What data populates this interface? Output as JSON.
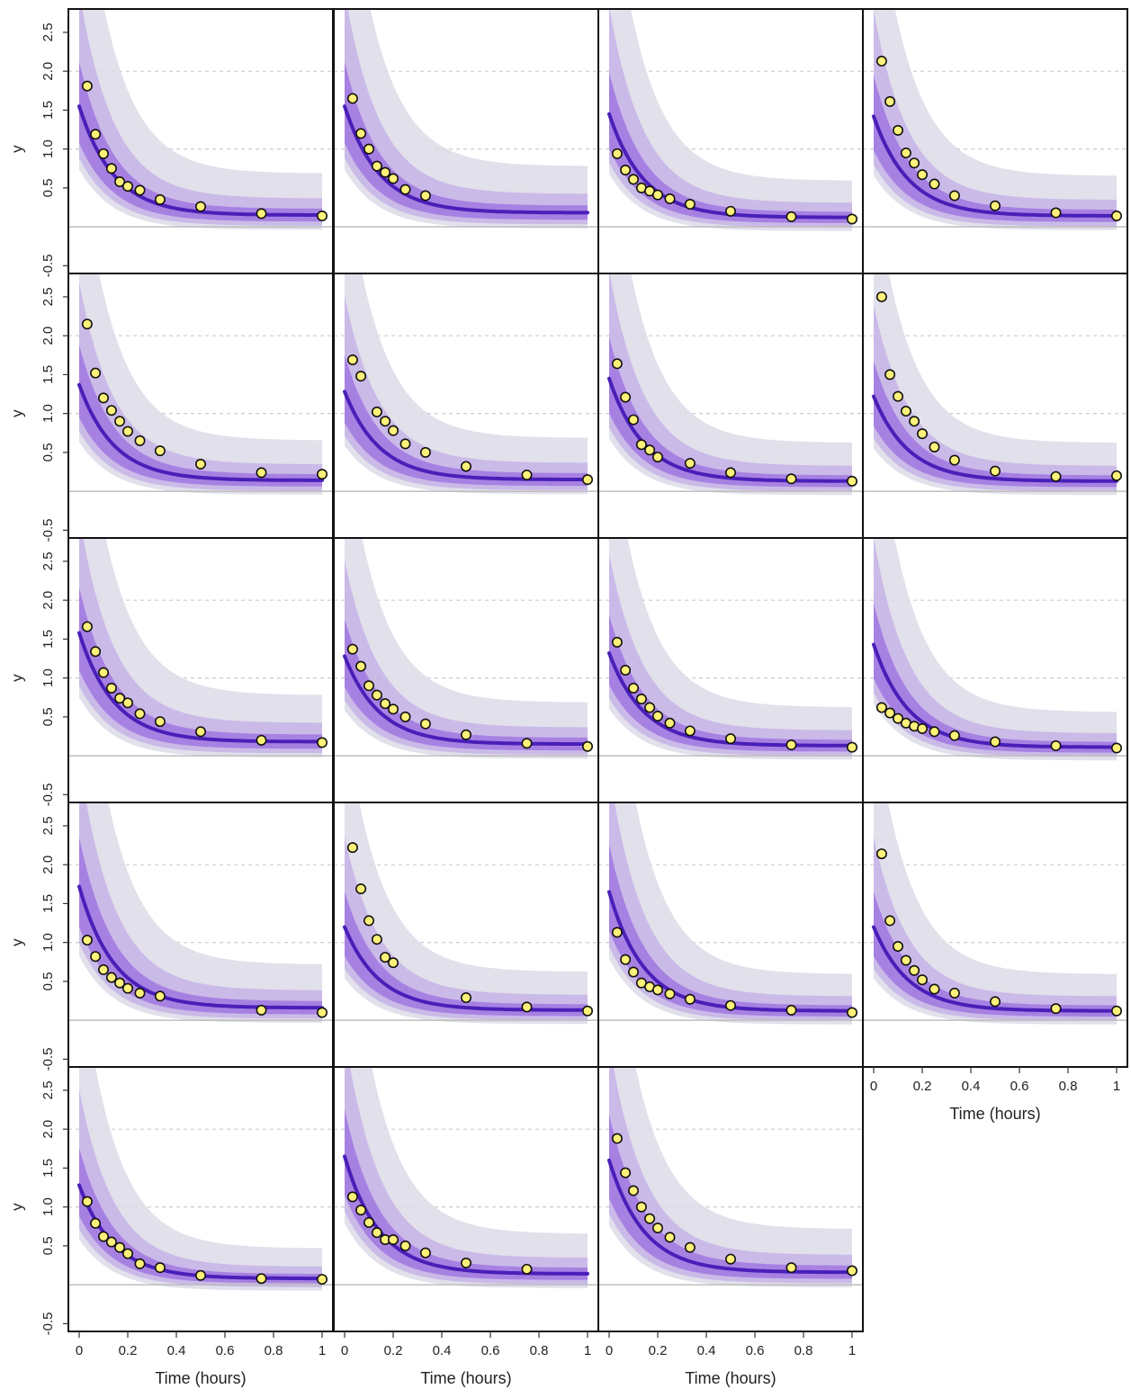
{
  "chart_data": {
    "type": "scatter",
    "layout": "small-multiples 5 rows x 4 columns (19 panels)",
    "xlabel": "Time (hours)",
    "ylabel": "y",
    "xlim": [
      0,
      1
    ],
    "ylim": [
      -0.6,
      2.8
    ],
    "x_ticks": [
      0,
      0.2,
      0.4,
      0.6,
      0.8,
      1
    ],
    "x_tick_labels": [
      "0",
      "0.2",
      "0.4",
      "0.6",
      "0.8",
      "1"
    ],
    "y_ticks": [
      -0.5,
      0.5,
      1.0,
      1.5,
      2.0,
      2.5
    ],
    "y_tick_labels": [
      "-0.5",
      "0.5",
      "1.0",
      "1.5",
      "2.0",
      "2.5"
    ],
    "dashed_gridlines_y": [
      1.0,
      2.0
    ],
    "solid_reference_y": 0,
    "sample_times": [
      0.033,
      0.067,
      0.1,
      0.133,
      0.167,
      0.2,
      0.25,
      0.333,
      0.5,
      0.75,
      1.0
    ],
    "colors": {
      "points": "#fff27a",
      "point_edge": "#111111",
      "median_line": "#4a1fb8",
      "band_outer": "#dcdae8",
      "band_mid": "#b89be6",
      "band_inner": "#8a52dd",
      "reference_line": "#bdbdbd",
      "dashed_grid": "#cccccc",
      "frame": "#111111"
    },
    "panels": [
      {
        "observed": [
          [
            0.033,
            1.81
          ],
          [
            0.067,
            1.19
          ],
          [
            0.1,
            0.94
          ],
          [
            0.133,
            0.75
          ],
          [
            0.167,
            0.58
          ],
          [
            0.2,
            0.52
          ],
          [
            0.25,
            0.47
          ],
          [
            0.333,
            0.35
          ],
          [
            0.5,
            0.26
          ],
          [
            0.75,
            0.17
          ],
          [
            1.0,
            0.14
          ]
        ],
        "median_curve": {
          "c0": 1.55,
          "floor": 0.15,
          "k": 7.0
        }
      },
      {
        "observed": [
          [
            0.033,
            1.65
          ],
          [
            0.067,
            1.2
          ],
          [
            0.1,
            1.0
          ],
          [
            0.133,
            0.78
          ],
          [
            0.167,
            0.7
          ],
          [
            0.2,
            0.62
          ],
          [
            0.25,
            0.48
          ],
          [
            0.333,
            0.4
          ]
        ],
        "median_curve": {
          "c0": 1.55,
          "floor": 0.18,
          "k": 7.0
        }
      },
      {
        "observed": [
          [
            0.033,
            0.94
          ],
          [
            0.067,
            0.73
          ],
          [
            0.1,
            0.61
          ],
          [
            0.133,
            0.5
          ],
          [
            0.167,
            0.46
          ],
          [
            0.2,
            0.41
          ],
          [
            0.25,
            0.36
          ],
          [
            0.333,
            0.29
          ],
          [
            0.5,
            0.2
          ],
          [
            0.75,
            0.13
          ],
          [
            1.0,
            0.1
          ]
        ],
        "median_curve": {
          "c0": 1.45,
          "floor": 0.12,
          "k": 7.0
        }
      },
      {
        "observed": [
          [
            0.033,
            2.13
          ],
          [
            0.067,
            1.61
          ],
          [
            0.1,
            1.24
          ],
          [
            0.133,
            0.95
          ],
          [
            0.167,
            0.82
          ],
          [
            0.2,
            0.67
          ],
          [
            0.25,
            0.55
          ],
          [
            0.333,
            0.4
          ],
          [
            0.5,
            0.27
          ],
          [
            0.75,
            0.18
          ],
          [
            1.0,
            0.14
          ]
        ],
        "median_curve": {
          "c0": 1.42,
          "floor": 0.14,
          "k": 7.0
        }
      },
      {
        "observed": [
          [
            0.033,
            2.15
          ],
          [
            0.067,
            1.52
          ],
          [
            0.1,
            1.2
          ],
          [
            0.133,
            1.04
          ],
          [
            0.167,
            0.9
          ],
          [
            0.2,
            0.77
          ],
          [
            0.25,
            0.65
          ],
          [
            0.333,
            0.52
          ],
          [
            0.5,
            0.35
          ],
          [
            0.75,
            0.24
          ],
          [
            1.0,
            0.22
          ]
        ],
        "median_curve": {
          "c0": 1.37,
          "floor": 0.14,
          "k": 7.0
        }
      },
      {
        "observed": [
          [
            0.033,
            1.69
          ],
          [
            0.067,
            1.48
          ],
          [
            0.133,
            1.02
          ],
          [
            0.167,
            0.9
          ],
          [
            0.2,
            0.78
          ],
          [
            0.25,
            0.61
          ],
          [
            0.333,
            0.5
          ],
          [
            0.5,
            0.32
          ],
          [
            0.75,
            0.21
          ],
          [
            1.0,
            0.15
          ]
        ],
        "median_curve": {
          "c0": 1.28,
          "floor": 0.15,
          "k": 7.0
        }
      },
      {
        "observed": [
          [
            0.033,
            1.64
          ],
          [
            0.067,
            1.21
          ],
          [
            0.1,
            0.92
          ],
          [
            0.133,
            0.6
          ],
          [
            0.167,
            0.53
          ],
          [
            0.2,
            0.44
          ],
          [
            0.333,
            0.36
          ],
          [
            0.5,
            0.24
          ],
          [
            0.75,
            0.16
          ],
          [
            1.0,
            0.13
          ]
        ],
        "median_curve": {
          "c0": 1.45,
          "floor": 0.13,
          "k": 7.0
        }
      },
      {
        "observed": [
          [
            0.033,
            2.5
          ],
          [
            0.067,
            1.5
          ],
          [
            0.1,
            1.22
          ],
          [
            0.133,
            1.03
          ],
          [
            0.167,
            0.9
          ],
          [
            0.2,
            0.74
          ],
          [
            0.25,
            0.57
          ],
          [
            0.333,
            0.4
          ],
          [
            0.5,
            0.26
          ],
          [
            0.75,
            0.19
          ],
          [
            1.0,
            0.2
          ]
        ],
        "median_curve": {
          "c0": 1.22,
          "floor": 0.13,
          "k": 7.0
        }
      },
      {
        "observed": [
          [
            0.033,
            1.66
          ],
          [
            0.067,
            1.34
          ],
          [
            0.1,
            1.07
          ],
          [
            0.133,
            0.87
          ],
          [
            0.167,
            0.74
          ],
          [
            0.2,
            0.68
          ],
          [
            0.25,
            0.54
          ],
          [
            0.333,
            0.44
          ],
          [
            0.5,
            0.31
          ],
          [
            0.75,
            0.2
          ],
          [
            1.0,
            0.17
          ]
        ],
        "median_curve": {
          "c0": 1.58,
          "floor": 0.18,
          "k": 7.0
        }
      },
      {
        "observed": [
          [
            0.033,
            1.37
          ],
          [
            0.067,
            1.15
          ],
          [
            0.1,
            0.9
          ],
          [
            0.133,
            0.78
          ],
          [
            0.167,
            0.67
          ],
          [
            0.2,
            0.6
          ],
          [
            0.25,
            0.5
          ],
          [
            0.333,
            0.41
          ],
          [
            0.5,
            0.27
          ],
          [
            0.75,
            0.16
          ],
          [
            1.0,
            0.12
          ]
        ],
        "median_curve": {
          "c0": 1.28,
          "floor": 0.15,
          "k": 7.0
        }
      },
      {
        "observed": [
          [
            0.033,
            1.46
          ],
          [
            0.067,
            1.1
          ],
          [
            0.1,
            0.87
          ],
          [
            0.133,
            0.73
          ],
          [
            0.167,
            0.62
          ],
          [
            0.2,
            0.51
          ],
          [
            0.25,
            0.42
          ],
          [
            0.333,
            0.32
          ],
          [
            0.5,
            0.22
          ],
          [
            0.75,
            0.14
          ],
          [
            1.0,
            0.11
          ]
        ],
        "median_curve": {
          "c0": 1.32,
          "floor": 0.13,
          "k": 7.0
        }
      },
      {
        "observed": [
          [
            0.033,
            0.62
          ],
          [
            0.067,
            0.55
          ],
          [
            0.1,
            0.48
          ],
          [
            0.133,
            0.42
          ],
          [
            0.167,
            0.38
          ],
          [
            0.2,
            0.35
          ],
          [
            0.25,
            0.31
          ],
          [
            0.333,
            0.26
          ],
          [
            0.5,
            0.18
          ],
          [
            0.75,
            0.13
          ],
          [
            1.0,
            0.1
          ]
        ],
        "median_curve": {
          "c0": 1.43,
          "floor": 0.11,
          "k": 7.0
        }
      },
      {
        "observed": [
          [
            0.033,
            1.03
          ],
          [
            0.067,
            0.82
          ],
          [
            0.1,
            0.65
          ],
          [
            0.133,
            0.55
          ],
          [
            0.167,
            0.48
          ],
          [
            0.2,
            0.41
          ],
          [
            0.25,
            0.35
          ],
          [
            0.333,
            0.31
          ],
          [
            0.75,
            0.13
          ],
          [
            1.0,
            0.1
          ]
        ],
        "median_curve": {
          "c0": 1.72,
          "floor": 0.16,
          "k": 7.0
        }
      },
      {
        "observed": [
          [
            0.033,
            2.22
          ],
          [
            0.067,
            1.69
          ],
          [
            0.1,
            1.28
          ],
          [
            0.133,
            1.04
          ],
          [
            0.167,
            0.81
          ],
          [
            0.2,
            0.74
          ],
          [
            0.5,
            0.29
          ],
          [
            0.75,
            0.17
          ],
          [
            1.0,
            0.12
          ]
        ],
        "median_curve": {
          "c0": 1.2,
          "floor": 0.13,
          "k": 7.0
        }
      },
      {
        "observed": [
          [
            0.033,
            1.13
          ],
          [
            0.067,
            0.78
          ],
          [
            0.1,
            0.62
          ],
          [
            0.133,
            0.48
          ],
          [
            0.167,
            0.43
          ],
          [
            0.2,
            0.39
          ],
          [
            0.25,
            0.34
          ],
          [
            0.333,
            0.27
          ],
          [
            0.5,
            0.19
          ],
          [
            0.75,
            0.13
          ],
          [
            1.0,
            0.1
          ]
        ],
        "median_curve": {
          "c0": 1.65,
          "floor": 0.12,
          "k": 7.0
        }
      },
      {
        "observed": [
          [
            0.033,
            2.14
          ],
          [
            0.067,
            1.28
          ],
          [
            0.1,
            0.95
          ],
          [
            0.133,
            0.77
          ],
          [
            0.167,
            0.64
          ],
          [
            0.2,
            0.52
          ],
          [
            0.25,
            0.4
          ],
          [
            0.333,
            0.35
          ],
          [
            0.5,
            0.24
          ],
          [
            0.75,
            0.15
          ],
          [
            1.0,
            0.12
          ]
        ],
        "median_curve": {
          "c0": 1.2,
          "floor": 0.12,
          "k": 7.0
        }
      },
      {
        "observed": [
          [
            0.033,
            1.07
          ],
          [
            0.067,
            0.79
          ],
          [
            0.1,
            0.62
          ],
          [
            0.133,
            0.55
          ],
          [
            0.167,
            0.48
          ],
          [
            0.2,
            0.4
          ],
          [
            0.25,
            0.27
          ],
          [
            0.333,
            0.22
          ],
          [
            0.5,
            0.12
          ],
          [
            0.75,
            0.08
          ],
          [
            1.0,
            0.07
          ]
        ],
        "median_curve": {
          "c0": 1.28,
          "floor": 0.08,
          "k": 7.0
        }
      },
      {
        "observed": [
          [
            0.033,
            1.13
          ],
          [
            0.067,
            0.96
          ],
          [
            0.1,
            0.8
          ],
          [
            0.133,
            0.67
          ],
          [
            0.167,
            0.58
          ],
          [
            0.2,
            0.58
          ],
          [
            0.25,
            0.5
          ],
          [
            0.333,
            0.41
          ],
          [
            0.5,
            0.28
          ],
          [
            0.75,
            0.2
          ]
        ],
        "median_curve": {
          "c0": 1.65,
          "floor": 0.14,
          "k": 7.0
        }
      },
      {
        "observed": [
          [
            0.033,
            1.88
          ],
          [
            0.067,
            1.44
          ],
          [
            0.1,
            1.21
          ],
          [
            0.133,
            1.0
          ],
          [
            0.167,
            0.85
          ],
          [
            0.2,
            0.73
          ],
          [
            0.25,
            0.61
          ],
          [
            0.333,
            0.48
          ],
          [
            0.5,
            0.33
          ],
          [
            0.75,
            0.22
          ],
          [
            1.0,
            0.18
          ]
        ],
        "median_curve": {
          "c0": 1.6,
          "floor": 0.16,
          "k": 7.0
        }
      }
    ]
  }
}
